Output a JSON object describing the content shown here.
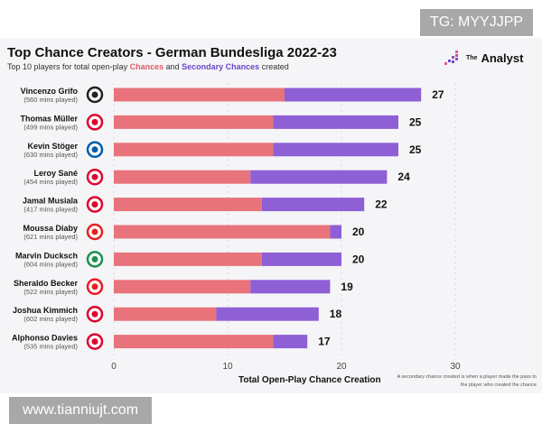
{
  "watermarks": {
    "top": "TG: MYYJJPP",
    "bottom": "www.tianniujt.com"
  },
  "logo": {
    "the": "The",
    "name": "Analyst"
  },
  "colors": {
    "chances": "#e8737b",
    "secondary": "#8f5fd6"
  },
  "chart_data": {
    "type": "bar",
    "orientation": "horizontal-stacked",
    "title": "Top Chance Creators - German Bundesliga 2022-23",
    "subtitle": {
      "pre": "Top 10 players for total open-play ",
      "a": "Chances",
      "mid": " and ",
      "b": "Secondary Chances",
      "post": " created"
    },
    "xlabel": "Total Open-Play Chance Creation",
    "xlim": [
      0,
      30
    ],
    "xticks": [
      "0",
      "10",
      "20",
      "30"
    ],
    "note": "A secondary chance created is when a player made the pass to the player who created the chance",
    "categories": [
      "Vincenzo Grifo",
      "Thomas Müller",
      "Kevin Stöger",
      "Leroy Sané",
      "Jamal Musiala",
      "Moussa Diaby",
      "Marvin Ducksch",
      "Sheraldo Becker",
      "Joshua Kimmich",
      "Alphonso Davies"
    ],
    "minutes": [
      "(560 mins played)",
      "(499 mins played)",
      "(630 mins played)",
      "(454 mins played)",
      "(417 mins played)",
      "(621 mins played)",
      "(604 mins played)",
      "(522 mins played)",
      "(602 mins played)",
      "(535 mins played)"
    ],
    "clubs": [
      "freiburg",
      "bayern",
      "bochum",
      "bayern",
      "bayern",
      "leverkusen",
      "werder",
      "union",
      "bayern",
      "bayern"
    ],
    "series": [
      {
        "name": "Chances",
        "values": [
          15,
          14,
          14,
          12,
          13,
          19,
          13,
          12,
          9,
          14
        ]
      },
      {
        "name": "Secondary Chances",
        "values": [
          12,
          11,
          11,
          12,
          9,
          1,
          7,
          7,
          9,
          3
        ]
      }
    ],
    "totals": [
      "27",
      "25",
      "25",
      "24",
      "22",
      "20",
      "20",
      "19",
      "18",
      "17"
    ]
  }
}
